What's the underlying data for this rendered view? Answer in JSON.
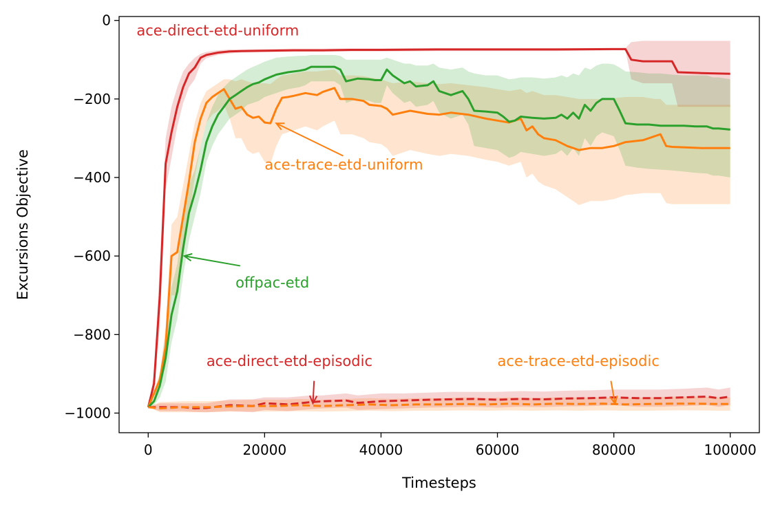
{
  "chart_data": {
    "type": "line",
    "title": "",
    "xlabel": "Timesteps",
    "ylabel": "Excursions Objective",
    "xlim": [
      -5000,
      105000
    ],
    "ylim": [
      -1050,
      10
    ],
    "xticks": [
      0,
      20000,
      40000,
      60000,
      80000,
      100000
    ],
    "xtick_labels": [
      "0",
      "20000",
      "40000",
      "60000",
      "80000",
      "100000"
    ],
    "yticks": [
      0,
      -200,
      -400,
      -600,
      -800,
      -1000
    ],
    "ytick_labels": [
      "0",
      "−200",
      "−400",
      "−600",
      "−800",
      "−1000"
    ],
    "grid": false,
    "legend": "none",
    "series": [
      {
        "name": "ace-direct-etd-uniform",
        "color": "#d62728",
        "dash": "solid",
        "x": [
          0,
          1000,
          2000,
          3000,
          4000,
          5000,
          6000,
          7000,
          8000,
          9000,
          10000,
          12000,
          14000,
          16000,
          20000,
          25000,
          30000,
          35000,
          40000,
          50000,
          60000,
          70000,
          80000,
          82000,
          83000,
          85000,
          88000,
          89000,
          90000,
          91000,
          95000,
          100000
        ],
        "y": [
          -985,
          -925,
          -700,
          -365,
          -285,
          -220,
          -170,
          -135,
          -120,
          -95,
          -88,
          -82,
          -79,
          -78,
          -77,
          -76,
          -76,
          -75,
          -75,
          -74,
          -74,
          -74,
          -73,
          -73,
          -100,
          -104,
          -104,
          -104,
          -104,
          -132,
          -134,
          -136
        ],
        "upper": [
          -985,
          -900,
          -620,
          -300,
          -220,
          -170,
          -130,
          -110,
          -95,
          -85,
          -80,
          -76,
          -74,
          -74,
          -73,
          -72,
          -72,
          -71,
          -71,
          -70,
          -70,
          -70,
          -70,
          -70,
          -55,
          -52,
          -52,
          -52,
          -52,
          -52,
          -52,
          -52
        ],
        "lower": [
          -985,
          -950,
          -780,
          -430,
          -350,
          -270,
          -210,
          -170,
          -150,
          -110,
          -96,
          -88,
          -84,
          -82,
          -81,
          -80,
          -80,
          -79,
          -79,
          -78,
          -78,
          -78,
          -76,
          -76,
          -150,
          -160,
          -160,
          -160,
          -160,
          -220,
          -220,
          -220
        ]
      },
      {
        "name": "ace-trace-etd-uniform",
        "color": "#ff7f0e",
        "dash": "solid",
        "x": [
          0,
          2000,
          3000,
          4000,
          5000,
          6000,
          7000,
          8000,
          9000,
          10000,
          11000,
          12000,
          13000,
          14000,
          15000,
          16000,
          17000,
          18000,
          19000,
          20000,
          21000,
          22000,
          23000,
          24000,
          25000,
          27000,
          29000,
          30000,
          32000,
          33000,
          35000,
          37000,
          38000,
          40000,
          41000,
          42000,
          45000,
          48000,
          50000,
          52000,
          55000,
          58000,
          60000,
          62000,
          64000,
          65000,
          66000,
          67000,
          68000,
          70000,
          72000,
          74000,
          76000,
          78000,
          80000,
          82000,
          85000,
          87000,
          88000,
          89000,
          90000,
          95000,
          100000
        ],
        "y": [
          -985,
          -915,
          -830,
          -600,
          -590,
          -500,
          -410,
          -310,
          -250,
          -210,
          -195,
          -185,
          -175,
          -200,
          -225,
          -220,
          -240,
          -248,
          -245,
          -260,
          -262,
          -225,
          -197,
          -195,
          -192,
          -185,
          -190,
          -182,
          -172,
          -200,
          -200,
          -205,
          -215,
          -218,
          -225,
          -240,
          -230,
          -238,
          -240,
          -235,
          -240,
          -250,
          -255,
          -260,
          -250,
          -280,
          -270,
          -290,
          -300,
          -305,
          -320,
          -330,
          -325,
          -325,
          -320,
          -310,
          -305,
          -295,
          -290,
          -320,
          -322,
          -325,
          -325
        ],
        "upper": [
          -985,
          -900,
          -780,
          -520,
          -500,
          -420,
          -340,
          -260,
          -210,
          -180,
          -170,
          -160,
          -150,
          -150,
          -155,
          -150,
          -155,
          -160,
          -160,
          -160,
          -162,
          -150,
          -140,
          -138,
          -135,
          -130,
          -130,
          -128,
          -125,
          -140,
          -140,
          -142,
          -145,
          -150,
          -155,
          -160,
          -155,
          -160,
          -162,
          -160,
          -165,
          -170,
          -175,
          -180,
          -175,
          -185,
          -180,
          -185,
          -190,
          -190,
          -195,
          -200,
          -200,
          -200,
          -198,
          -195,
          -195,
          -200,
          -200,
          -215,
          -215,
          -215,
          -215
        ],
        "lower": [
          -985,
          -930,
          -880,
          -700,
          -700,
          -600,
          -500,
          -400,
          -320,
          -260,
          -240,
          -230,
          -215,
          -250,
          -300,
          -300,
          -330,
          -340,
          -335,
          -360,
          -365,
          -320,
          -290,
          -285,
          -280,
          -270,
          -280,
          -270,
          -255,
          -290,
          -290,
          -300,
          -310,
          -315,
          -325,
          -345,
          -330,
          -340,
          -345,
          -340,
          -345,
          -355,
          -360,
          -370,
          -360,
          -400,
          -390,
          -410,
          -420,
          -430,
          -450,
          -470,
          -460,
          -460,
          -455,
          -445,
          -440,
          -440,
          -440,
          -465,
          -468,
          -468,
          -468
        ]
      },
      {
        "name": "offpac-etd",
        "color": "#2ca02c",
        "dash": "solid",
        "x": [
          0,
          1000,
          2000,
          3000,
          4000,
          5000,
          6000,
          7000,
          8000,
          9000,
          10000,
          11000,
          12000,
          13000,
          14000,
          15000,
          16000,
          17000,
          18000,
          19000,
          20000,
          22000,
          24000,
          26000,
          27000,
          28000,
          30000,
          32000,
          33000,
          34000,
          36000,
          38000,
          39000,
          40000,
          41000,
          42000,
          44000,
          45000,
          46000,
          48000,
          49000,
          50000,
          52000,
          54000,
          55000,
          56000,
          58000,
          60000,
          61000,
          62000,
          63000,
          64000,
          66000,
          68000,
          70000,
          71000,
          72000,
          73000,
          74000,
          75000,
          76000,
          77000,
          78000,
          79000,
          80000,
          81000,
          82000,
          84000,
          86000,
          88000,
          90000,
          92000,
          94000,
          96000,
          97000,
          98000,
          100000
        ],
        "y": [
          -985,
          -970,
          -930,
          -860,
          -750,
          -690,
          -580,
          -490,
          -440,
          -380,
          -310,
          -270,
          -240,
          -220,
          -200,
          -190,
          -180,
          -170,
          -162,
          -158,
          -150,
          -138,
          -132,
          -128,
          -125,
          -118,
          -118,
          -118,
          -125,
          -155,
          -148,
          -150,
          -152,
          -152,
          -125,
          -140,
          -160,
          -155,
          -168,
          -165,
          -155,
          -180,
          -190,
          -180,
          -200,
          -230,
          -232,
          -235,
          -245,
          -258,
          -255,
          -245,
          -248,
          -250,
          -248,
          -240,
          -250,
          -235,
          -250,
          -215,
          -230,
          -210,
          -200,
          -200,
          -200,
          -230,
          -262,
          -265,
          -265,
          -268,
          -268,
          -268,
          -270,
          -270,
          -275,
          -275,
          -278
        ],
        "upper": [
          -985,
          -960,
          -900,
          -800,
          -680,
          -620,
          -510,
          -420,
          -380,
          -320,
          -260,
          -220,
          -190,
          -170,
          -155,
          -145,
          -135,
          -125,
          -118,
          -112,
          -105,
          -95,
          -92,
          -90,
          -90,
          -88,
          -88,
          -88,
          -90,
          -100,
          -100,
          -100,
          -100,
          -100,
          -95,
          -100,
          -110,
          -110,
          -115,
          -115,
          -110,
          -120,
          -125,
          -120,
          -130,
          -135,
          -140,
          -140,
          -145,
          -150,
          -148,
          -145,
          -145,
          -148,
          -145,
          -140,
          -145,
          -135,
          -140,
          -120,
          -125,
          -115,
          -110,
          -110,
          -112,
          -120,
          -130,
          -132,
          -135,
          -135,
          -138,
          -140,
          -140,
          -140,
          -145,
          -145,
          -150
        ],
        "lower": [
          -985,
          -980,
          -960,
          -920,
          -820,
          -760,
          -650,
          -560,
          -500,
          -440,
          -360,
          -320,
          -290,
          -270,
          -250,
          -240,
          -230,
          -215,
          -210,
          -205,
          -195,
          -185,
          -175,
          -170,
          -165,
          -155,
          -155,
          -155,
          -165,
          -210,
          -200,
          -205,
          -210,
          -210,
          -165,
          -185,
          -210,
          -205,
          -220,
          -215,
          -205,
          -235,
          -250,
          -240,
          -265,
          -320,
          -325,
          -330,
          -340,
          -350,
          -345,
          -335,
          -340,
          -345,
          -340,
          -330,
          -345,
          -325,
          -345,
          -300,
          -320,
          -295,
          -285,
          -290,
          -295,
          -330,
          -370,
          -375,
          -378,
          -380,
          -382,
          -385,
          -388,
          -390,
          -395,
          -395,
          -400
        ]
      },
      {
        "name": "ace-direct-etd-episodic",
        "color": "#d62728",
        "dash": "dashed",
        "x": [
          0,
          2000,
          4000,
          6000,
          8000,
          10000,
          14000,
          18000,
          20000,
          24000,
          28000,
          30000,
          34000,
          36000,
          40000,
          44000,
          48000,
          52000,
          56000,
          60000,
          64000,
          68000,
          72000,
          76000,
          80000,
          84000,
          88000,
          92000,
          96000,
          98000,
          100000
        ],
        "y": [
          -985,
          -985,
          -985,
          -985,
          -988,
          -987,
          -980,
          -982,
          -975,
          -978,
          -972,
          -970,
          -968,
          -974,
          -970,
          -968,
          -966,
          -965,
          -964,
          -966,
          -964,
          -965,
          -963,
          -962,
          -960,
          -962,
          -962,
          -960,
          -958,
          -962,
          -958
        ],
        "upper": [
          -985,
          -975,
          -975,
          -975,
          -975,
          -975,
          -965,
          -965,
          -960,
          -960,
          -955,
          -955,
          -950,
          -955,
          -950,
          -950,
          -948,
          -946,
          -946,
          -946,
          -944,
          -945,
          -943,
          -942,
          -940,
          -940,
          -940,
          -938,
          -935,
          -940,
          -935
        ],
        "lower": [
          -985,
          -995,
          -995,
          -995,
          -997,
          -998,
          -995,
          -998,
          -992,
          -995,
          -990,
          -988,
          -986,
          -992,
          -990,
          -988,
          -986,
          -985,
          -984,
          -986,
          -984,
          -985,
          -983,
          -982,
          -980,
          -984,
          -984,
          -982,
          -980,
          -984,
          -980
        ]
      },
      {
        "name": "ace-trace-etd-episodic",
        "color": "#ff7f0e",
        "dash": "dashed",
        "x": [
          0,
          2000,
          6000,
          10000,
          14000,
          18000,
          22000,
          26000,
          30000,
          34000,
          38000,
          42000,
          46000,
          50000,
          54000,
          58000,
          62000,
          66000,
          70000,
          74000,
          78000,
          82000,
          86000,
          90000,
          94000,
          98000,
          100000
        ],
        "y": [
          -985,
          -988,
          -985,
          -985,
          -983,
          -982,
          -982,
          -980,
          -982,
          -980,
          -978,
          -980,
          -978,
          -978,
          -977,
          -978,
          -976,
          -978,
          -976,
          -977,
          -976,
          -978,
          -977,
          -976,
          -976,
          -977,
          -977
        ],
        "upper": [
          -985,
          -972,
          -970,
          -970,
          -968,
          -966,
          -966,
          -964,
          -966,
          -964,
          -962,
          -964,
          -962,
          -962,
          -960,
          -962,
          -960,
          -962,
          -960,
          -960,
          -960,
          -962,
          -960,
          -958,
          -958,
          -960,
          -960
        ],
        "lower": [
          -985,
          -998,
          -998,
          -998,
          -996,
          -996,
          -996,
          -995,
          -996,
          -995,
          -994,
          -995,
          -994,
          -994,
          -993,
          -994,
          -993,
          -994,
          -993,
          -994,
          -993,
          -994,
          -994,
          -993,
          -993,
          -994,
          -994
        ]
      }
    ],
    "annotations": [
      {
        "text": "ace-direct-etd-uniform",
        "color": "#d62728",
        "at": [
          -2000,
          -38
        ],
        "arrow_to": null
      },
      {
        "text": "ace-trace-etd-uniform",
        "color": "#ff7f0e",
        "at": [
          20000,
          -380
        ],
        "arrow_from": [
          33500,
          -345
        ],
        "arrow_to": [
          22000,
          -262
        ]
      },
      {
        "text": "offpac-etd",
        "color": "#2ca02c",
        "at": [
          15000,
          -680
        ],
        "arrow_from": [
          15800,
          -625
        ],
        "arrow_to": [
          6200,
          -600
        ]
      },
      {
        "text": "ace-direct-etd-episodic",
        "color": "#d62728",
        "at": [
          10000,
          -880
        ],
        "arrow_from": [
          28500,
          -918
        ],
        "arrow_to": [
          28300,
          -975
        ]
      },
      {
        "text": "ace-trace-etd-episodic",
        "color": "#ff7f0e",
        "at": [
          60000,
          -880
        ],
        "arrow_from": [
          79500,
          -918
        ],
        "arrow_to": [
          80200,
          -976
        ]
      }
    ]
  }
}
